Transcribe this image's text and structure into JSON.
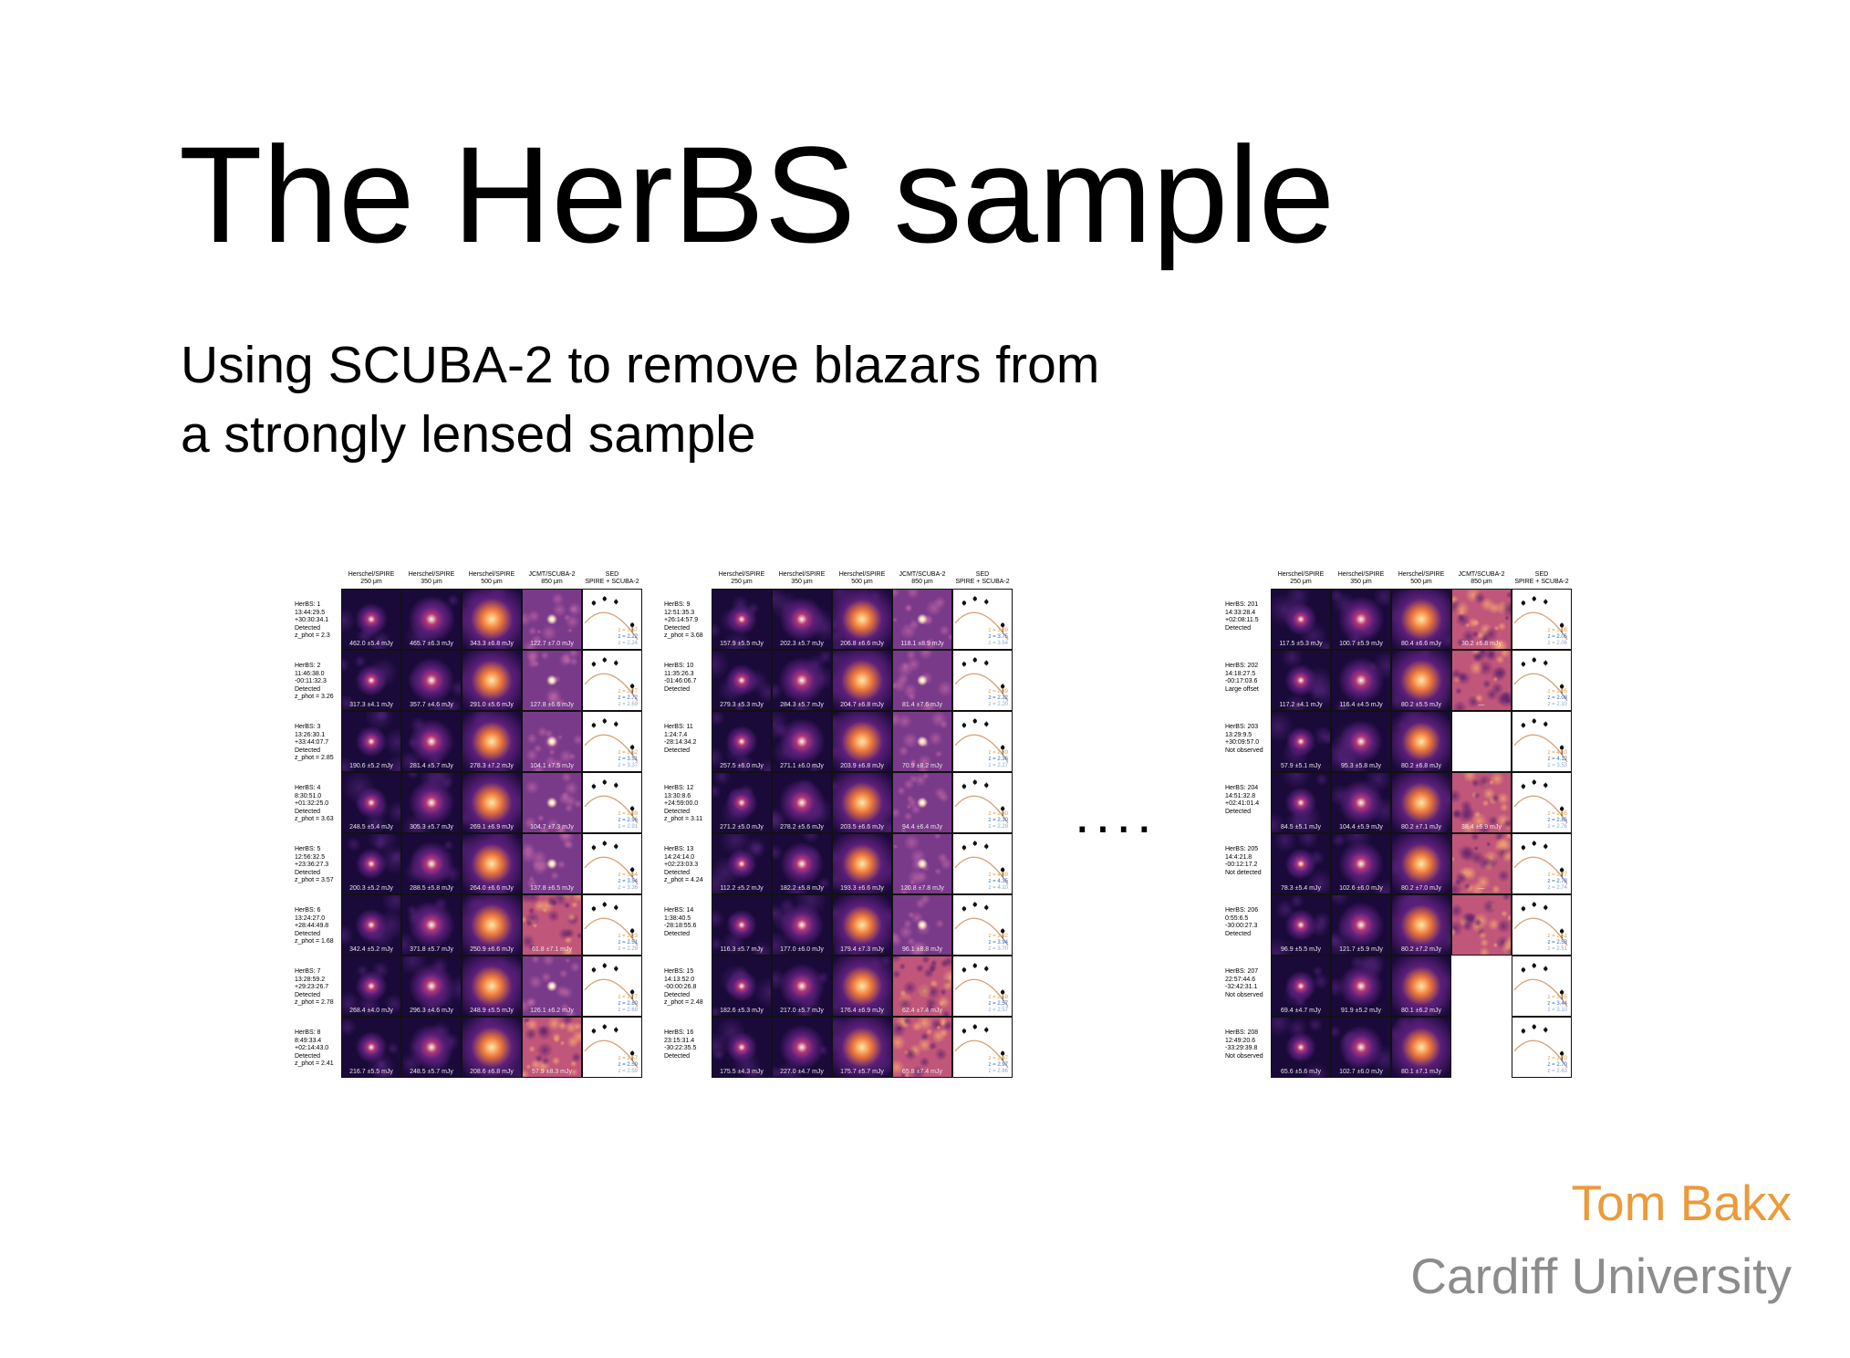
{
  "slide": {
    "title": "The HerBS sample",
    "subtitle_line1": "Using SCUBA-2 to remove blazars from",
    "subtitle_line2": "a strongly lensed sample",
    "ellipsis": "....",
    "author": "Tom Bakx",
    "affiliation": "Cardiff University",
    "author_color": "#ec9a3a",
    "affiliation_color": "#8c8c8c"
  },
  "figure": {
    "headers": [
      {
        "line1": "Herschel/SPIRE",
        "line2": "250 μm"
      },
      {
        "line1": "Herschel/SPIRE",
        "line2": "350 μm"
      },
      {
        "line1": "Herschel/SPIRE",
        "line2": "500 μm"
      },
      {
        "line1": "JCMT/SCUBA-2",
        "line2": "850 μm"
      },
      {
        "line1": "SED",
        "line2": "SPIRE + SCUBA-2"
      }
    ],
    "panels": [
      {
        "rows": [
          {
            "label": [
              "HerBS: 1",
              "13:44:29.5",
              "+30:30:34.1",
              "Detected",
              "z_phot = 2.3"
            ],
            "fluxes": [
              "462.0 ±5.4 mJy",
              "465.7 ±6.3 mJy",
              "343.3 ±6.8 mJy",
              "122.7 ±7.0 mJy"
            ],
            "z": [
              "2.37",
              "2.22",
              "2.24"
            ],
            "scuba": "smooth",
            "peak": 0.62
          },
          {
            "label": [
              "HerBS: 2",
              "11:46:38.0",
              "-00:11:32.3",
              "Detected",
              "z_phot = 3.26"
            ],
            "fluxes": [
              "317.3 ±4.1 mJy",
              "357.7 ±4.6 mJy",
              "291.0 ±5.6 mJy",
              "127.8 ±6.6 mJy"
            ],
            "z": [
              "2.77",
              "2.72",
              "2.69"
            ],
            "scuba": "smooth",
            "peak": 0.55
          },
          {
            "label": [
              "HerBS: 3",
              "13:26:30.1",
              "+33:44:07.7",
              "Detected",
              "z_phot = 2.85"
            ],
            "fluxes": [
              "190.6 ±5.2 mJy",
              "281.4 ±5.7 mJy",
              "278.3 ±7.2 mJy",
              "104.1 ±7.5 mJy"
            ],
            "z": [
              "3.52",
              "3.51",
              "3.37"
            ],
            "scuba": "smooth",
            "peak": 0.5
          },
          {
            "label": [
              "HerBS: 4",
              "8:30:51.0",
              "+01:32:25.0",
              "Detected",
              "z_phot = 3.63"
            ],
            "fluxes": [
              "248.5 ±5.4 mJy",
              "305.3 ±5.7 mJy",
              "269.1 ±6.9 mJy",
              "104.7 ±7.3 mJy"
            ],
            "z": [
              "2.99",
              "2.96",
              "2.91"
            ],
            "scuba": "smooth",
            "peak": 0.55
          },
          {
            "label": [
              "HerBS: 5",
              "12:56:32.5",
              "+23:36:27.3",
              "Detected",
              "z_phot = 3.57"
            ],
            "fluxes": [
              "200.3 ±5.2 mJy",
              "288.5 ±5.8 mJy",
              "264.0 ±6.6 mJy",
              "137.8 ±6.5 mJy"
            ],
            "z": [
              "3.64",
              "3.54",
              "3.36"
            ],
            "scuba": "smooth",
            "peak": 0.5
          },
          {
            "label": [
              "HerBS: 6",
              "13:24:27.0",
              "+28:44:49.8",
              "Detected",
              "z_phot = 1.68"
            ],
            "fluxes": [
              "342.4 ±5.2 mJy",
              "371.8 ±5.7 mJy",
              "250.9 ±6.6 mJy",
              "61.8 ±7.1 mJy"
            ],
            "z": [
              "2.23",
              "2.51",
              "2.29"
            ],
            "scuba": "noisy",
            "peak": 0.6
          },
          {
            "label": [
              "HerBS: 7",
              "13:28:59.2",
              "+29:23:26.7",
              "Detected",
              "z_phot = 2.78"
            ],
            "fluxes": [
              "268.4 ±4.0 mJy",
              "296.3 ±4.6 mJy",
              "248.9 ±5.5 mJy",
              "126.1 ±6.2 mJy"
            ],
            "z": [
              "2.77",
              "2.80",
              "2.69"
            ],
            "scuba": "smooth",
            "peak": 0.55
          },
          {
            "label": [
              "HerBS: 8",
              "8:49:33.4",
              "+02:14:43.0",
              "Detected",
              "z_phot = 2.41"
            ],
            "fluxes": [
              "216.7 ±5.5 mJy",
              "248.5 ±5.7 mJy",
              "208.6 ±6.8 mJy",
              "57.9 ±8.3 mJy"
            ],
            "z": [
              "2.57",
              "2.59",
              "2.59"
            ],
            "scuba": "noisy",
            "peak": 0.55
          }
        ]
      },
      {
        "rows": [
          {
            "label": [
              "HerBS: 9",
              "12:51:35.3",
              "+26:14:57.9",
              "Detected",
              "z_phot = 3.68"
            ],
            "fluxes": [
              "157.9 ±5.5 mJy",
              "202.3 ±5.7 mJy",
              "206.8 ±6.6 mJy",
              "118.1 ±8.9 mJy"
            ],
            "z": [
              "3.89",
              "3.75",
              "3.54"
            ],
            "scuba": "smooth",
            "peak": 0.48
          },
          {
            "label": [
              "HerBS: 10",
              "11:35:26.3",
              "-01:46:06.7",
              "Detected"
            ],
            "fluxes": [
              "279.3 ±5.3 mJy",
              "284.3 ±5.7 mJy",
              "204.7 ±6.8 mJy",
              "81.4 ±7.6 mJy"
            ],
            "z": [
              "2.39",
              "2.32",
              "2.20"
            ],
            "scuba": "smooth",
            "peak": 0.6
          },
          {
            "label": [
              "HerBS: 11",
              "1:24:7.4",
              "-28:14:34.2",
              "Detected"
            ],
            "fluxes": [
              "257.5 ±6.0 mJy",
              "271.1 ±6.0 mJy",
              "203.9 ±6.8 mJy",
              "70.9 ±8.2 mJy"
            ],
            "z": [
              "2.39",
              "2.36",
              "2.27"
            ],
            "scuba": "smooth",
            "peak": 0.58
          },
          {
            "label": [
              "HerBS: 12",
              "13:30:8.6",
              "+24:59:00.0",
              "Detected",
              "z_phot = 3.11"
            ],
            "fluxes": [
              "271.2 ±5.0 mJy",
              "278.2 ±5.6 mJy",
              "203.5 ±6.6 mJy",
              "94.4 ±6.4 mJy"
            ],
            "z": [
              "2.30",
              "2.30",
              "2.29"
            ],
            "scuba": "smooth",
            "peak": 0.58
          },
          {
            "label": [
              "HerBS: 13",
              "14:24:14.0",
              "+02:23:03.3",
              "Detected",
              "z_phot = 4.24"
            ],
            "fluxes": [
              "112.2 ±5.2 mJy",
              "182.2 ±5.8 mJy",
              "193.3 ±6.6 mJy",
              "120.8 ±7.8 mJy"
            ],
            "z": [
              "4.39",
              "4.35",
              "4.10"
            ],
            "scuba": "smooth",
            "peak": 0.42
          },
          {
            "label": [
              "HerBS: 14",
              "1:38:40.5",
              "-28:18:55.6",
              "Detected"
            ],
            "fluxes": [
              "116.3 ±5.7 mJy",
              "177.0 ±6.0 mJy",
              "179.4 ±7.3 mJy",
              "96.1 ±8.8 mJy"
            ],
            "z": [
              "3.92",
              "3.94",
              "3.70"
            ],
            "scuba": "smooth",
            "peak": 0.44
          },
          {
            "label": [
              "HerBS: 15",
              "14:13:52.0",
              "-00:00:26.8",
              "Detected",
              "z_phot = 2.48"
            ],
            "fluxes": [
              "182.6 ±5.3 mJy",
              "217.0 ±5.7 mJy",
              "176.4 ±6.9 mJy",
              "62.4 ±7.4 mJy"
            ],
            "z": [
              "2.59",
              "2.57",
              "2.57"
            ],
            "scuba": "noisy",
            "peak": 0.52
          },
          {
            "label": [
              "HerBS: 16",
              "23:15:31.4",
              "-30:22:35.5",
              "Detected"
            ],
            "fluxes": [
              "175.5 ±4.3 mJy",
              "227.0 ±4.7 mJy",
              "175.7 ±5.7 mJy",
              "65.8 ±7.4 mJy"
            ],
            "z": [
              "2.97",
              "2.97",
              "2.86"
            ],
            "scuba": "noisy",
            "peak": 0.52
          }
        ]
      },
      {
        "rows": [
          {
            "label": [
              "HerBS: 201",
              "14:33:28.4",
              "+02:08:11.5",
              "Detected"
            ],
            "fluxes": [
              "117.5 ±5.3 mJy",
              "100.7 ±5.9 mJy",
              "80.4 ±6.6 mJy",
              "30.2 ±6.8 mJy"
            ],
            "z": [
              "2.08",
              "2.05",
              "2.06"
            ],
            "scuba": "noisy",
            "peak": 0.58
          },
          {
            "label": [
              "HerBS: 202",
              "14:18:27.5",
              "-00:17:03.6",
              "Large offset"
            ],
            "fluxes": [
              "117.2 ±4.1 mJy",
              "116.4 ±4.5 mJy",
              "80.2 ±5.5 mJy",
              "—"
            ],
            "z": [
              "2.05",
              "2.08",
              "2.10"
            ],
            "scuba": "noisy",
            "peak": 0.58
          },
          {
            "label": [
              "HerBS: 203",
              "13:29:9.5",
              "+30:09:57.0",
              "Not observed"
            ],
            "fluxes": [
              "57.9 ±5.1 mJy",
              "95.3 ±5.8 mJy",
              "80.2 ±6.8 mJy",
              ""
            ],
            "z": [
              "4.10",
              "4.12",
              "3.53"
            ],
            "scuba": "none",
            "peak": 0.4
          },
          {
            "label": [
              "HerBS: 204",
              "14:51:32.8",
              "+02:41:01.4",
              "Detected"
            ],
            "fluxes": [
              "84.5 ±5.1 mJy",
              "104.4 ±5.9 mJy",
              "80.2 ±7.1 mJy",
              "38.4 ±6.9 mJy"
            ],
            "z": [
              "2.85",
              "2.85",
              "2.76"
            ],
            "scuba": "noisy",
            "peak": 0.52
          },
          {
            "label": [
              "HerBS: 205",
              "14:4:21.8",
              "-00:12:17.2",
              "Not detected"
            ],
            "fluxes": [
              "78.3 ±5.4 mJy",
              "102.6 ±6.0 mJy",
              "80.2 ±7.0 mJy",
              "—"
            ],
            "z": [
              "2.77",
              "2.78",
              "2.74"
            ],
            "scuba": "noisy",
            "peak": 0.5
          },
          {
            "label": [
              "HerBS: 206",
              "0:55:6.5",
              "-30:00:27.3",
              "Detected"
            ],
            "fluxes": [
              "96.9 ±5.5 mJy",
              "121.7 ±5.9 mJy",
              "80.2 ±7.2 mJy",
              ""
            ],
            "z": [
              "2.51",
              "2.53",
              "2.51"
            ],
            "scuba": "noisy",
            "peak": 0.55
          },
          {
            "label": [
              "HerBS: 207",
              "22:57:44.6",
              "-32:42:31.1",
              "Not observed"
            ],
            "fluxes": [
              "69.4 ±4.7 mJy",
              "91.9 ±5.2 mJy",
              "80.1 ±6.2 mJy",
              ""
            ],
            "z": [
              "3.45",
              "3.44",
              "3.10"
            ],
            "scuba": "absent",
            "peak": 0.45
          },
          {
            "label": [
              "HerBS: 208",
              "12:49:20.6",
              "-33:29:39.8",
              "Not observed"
            ],
            "fluxes": [
              "65.6 ±5.6 mJy",
              "102.7 ±6.0 mJy",
              "80.1 ±7.1 mJy",
              ""
            ],
            "z": [
              "2.70",
              "2.70",
              "2.63"
            ],
            "scuba": "absent",
            "peak": 0.45
          }
        ]
      }
    ]
  }
}
